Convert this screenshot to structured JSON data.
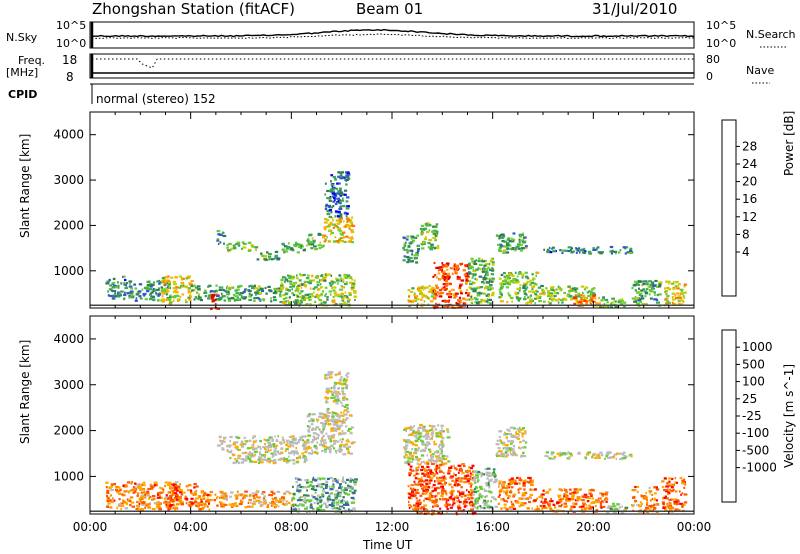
{
  "header": {
    "station": "Zhongshan Station (fitACF)",
    "beam": "Beam 01",
    "date": "31/Jul/2010"
  },
  "status_panels": {
    "nsky_label": "N.Sky",
    "nsky_top_tick": "10^5",
    "nsky_bottom_tick": "10^0",
    "nsearch_label": "N.Search",
    "nsearch_top_tick": "10^5",
    "nsearch_bottom_tick": "10^0",
    "freq_label": "Freq.",
    "freq_unit": "[MHz]",
    "freq_top_tick": "18",
    "freq_bottom_tick": "8",
    "nave_label": "Nave",
    "nave_top_tick": "80",
    "nave_bottom_tick": "0",
    "cpid_label": "CPID",
    "cpid_text": "normal (stereo) 152"
  },
  "chart_data": [
    {
      "type": "heatmap",
      "name": "power",
      "x_tick_labels": [
        "00:00",
        "04:00",
        "08:00",
        "12:00",
        "16:00",
        "20:00",
        "00:00"
      ],
      "xlabel": "",
      "ylabel": "Slant Range [km]",
      "ylim": [
        180,
        4500
      ],
      "y_ticks": [
        1000,
        2000,
        3000,
        4000
      ],
      "colorbar": {
        "label": "Power [dB]",
        "tick_labels": [
          "28",
          "24",
          "20",
          "16",
          "12",
          "8",
          "4"
        ],
        "colors": [
          "#0000ff",
          "#3355cc",
          "#2e7d57",
          "#3ea655",
          "#66cc33",
          "#cccc00",
          "#ffaa00",
          "#ff7700",
          "#ff3300",
          "#dd0000"
        ]
      },
      "regions": [
        {
          "t": [
            0.6,
            1.4
          ],
          "r": [
            400,
            900
          ],
          "level": 0.25
        },
        {
          "t": [
            1.4,
            3.2
          ],
          "r": [
            350,
            800
          ],
          "level": 0.3
        },
        {
          "t": [
            2.8,
            4.0
          ],
          "r": [
            300,
            900
          ],
          "level": 0.55
        },
        {
          "t": [
            4.0,
            5.0
          ],
          "r": [
            350,
            700
          ],
          "level": 0.35
        },
        {
          "t": [
            4.7,
            5.1
          ],
          "r": [
            180,
            500
          ],
          "level": 0.85
        },
        {
          "t": [
            5.0,
            5.3
          ],
          "r": [
            1600,
            1900
          ],
          "level": 0.3
        },
        {
          "t": [
            5.4,
            6.6
          ],
          "r": [
            1450,
            1650
          ],
          "level": 0.45
        },
        {
          "t": [
            6.6,
            7.5
          ],
          "r": [
            1250,
            1450
          ],
          "level": 0.35
        },
        {
          "t": [
            7.6,
            8.6
          ],
          "r": [
            1400,
            1650
          ],
          "level": 0.35
        },
        {
          "t": [
            8.6,
            9.2
          ],
          "r": [
            1500,
            1850
          ],
          "level": 0.4
        },
        {
          "t": [
            9.2,
            10.4
          ],
          "r": [
            1650,
            2200
          ],
          "level": 0.6
        },
        {
          "t": [
            9.3,
            10.2
          ],
          "r": [
            2200,
            3200
          ],
          "level": 0.2
        },
        {
          "t": [
            5.0,
            7.5
          ],
          "r": [
            350,
            700
          ],
          "level": 0.35
        },
        {
          "t": [
            7.5,
            10.5
          ],
          "r": [
            250,
            950
          ],
          "level": 0.45
        },
        {
          "t": [
            12.4,
            13.0
          ],
          "r": [
            1200,
            1800
          ],
          "level": 0.3
        },
        {
          "t": [
            13.1,
            13.8
          ],
          "r": [
            1500,
            2100
          ],
          "level": 0.45
        },
        {
          "t": [
            12.6,
            13.6
          ],
          "r": [
            250,
            700
          ],
          "level": 0.55
        },
        {
          "t": [
            13.6,
            15.0
          ],
          "r": [
            200,
            1200
          ],
          "level": 0.85
        },
        {
          "t": [
            15.0,
            16.0
          ],
          "r": [
            300,
            1300
          ],
          "level": 0.4
        },
        {
          "t": [
            16.1,
            17.3
          ],
          "r": [
            1400,
            1850
          ],
          "level": 0.35
        },
        {
          "t": [
            16.2,
            17.8
          ],
          "r": [
            300,
            1000
          ],
          "level": 0.45
        },
        {
          "t": [
            17.8,
            20.0
          ],
          "r": [
            300,
            700
          ],
          "level": 0.45
        },
        {
          "t": [
            19.2,
            20.2
          ],
          "r": [
            250,
            500
          ],
          "level": 0.75
        },
        {
          "t": [
            18.0,
            21.5
          ],
          "r": [
            1400,
            1550
          ],
          "level": 0.25
        },
        {
          "t": [
            20.2,
            21.2
          ],
          "r": [
            220,
            450
          ],
          "level": 0.45
        },
        {
          "t": [
            21.5,
            22.6
          ],
          "r": [
            250,
            800
          ],
          "level": 0.35
        },
        {
          "t": [
            22.8,
            23.6
          ],
          "r": [
            250,
            800
          ],
          "level": 0.6
        }
      ]
    },
    {
      "type": "heatmap",
      "name": "velocity",
      "x_tick_labels": [
        "00:00",
        "04:00",
        "08:00",
        "12:00",
        "16:00",
        "20:00",
        "00:00"
      ],
      "xlabel": "Time UT",
      "ylabel": "Slant Range [km]",
      "ylim": [
        180,
        4500
      ],
      "y_ticks": [
        1000,
        2000,
        3000,
        4000
      ],
      "colorbar": {
        "label": "Velocity [m s^-1]",
        "tick_labels": [
          "1000",
          "500",
          "100",
          "25",
          "-25",
          "-100",
          "-500",
          "-1000"
        ],
        "colors": [
          "#ff0000",
          "#ff5500",
          "#ff8800",
          "#ffaa00",
          "#bbbbbb",
          "#bbbbbb",
          "#66cc33",
          "#338855",
          "#3366aa",
          "#2244cc"
        ]
      },
      "regions": [
        {
          "t": [
            0.6,
            3.5
          ],
          "r": [
            300,
            900
          ],
          "level": 0.25
        },
        {
          "t": [
            3.0,
            4.2
          ],
          "r": [
            300,
            900
          ],
          "level": 0.2
        },
        {
          "t": [
            4.2,
            5.3
          ],
          "r": [
            300,
            700
          ],
          "level": 0.25
        },
        {
          "t": [
            5.0,
            5.3
          ],
          "r": [
            1600,
            1900
          ],
          "level": 0.5
        },
        {
          "t": [
            5.4,
            8.6
          ],
          "r": [
            1300,
            1900
          ],
          "level": 0.5
        },
        {
          "t": [
            8.6,
            10.4
          ],
          "r": [
            1500,
            2400
          ],
          "level": 0.5
        },
        {
          "t": [
            9.3,
            10.2
          ],
          "r": [
            2400,
            3300
          ],
          "level": 0.5
        },
        {
          "t": [
            5.2,
            8.0
          ],
          "r": [
            350,
            700
          ],
          "level": 0.3
        },
        {
          "t": [
            8.0,
            10.5
          ],
          "r": [
            250,
            1000
          ],
          "level": 0.7
        },
        {
          "t": [
            12.4,
            14.2
          ],
          "r": [
            1300,
            2150
          ],
          "level": 0.5
        },
        {
          "t": [
            12.6,
            15.2
          ],
          "r": [
            200,
            1300
          ],
          "level": 0.15
        },
        {
          "t": [
            15.2,
            16.1
          ],
          "r": [
            300,
            1200
          ],
          "level": 0.6
        },
        {
          "t": [
            16.1,
            17.3
          ],
          "r": [
            1450,
            2100
          ],
          "level": 0.5
        },
        {
          "t": [
            16.2,
            17.6
          ],
          "r": [
            300,
            1000
          ],
          "level": 0.25
        },
        {
          "t": [
            17.6,
            20.5
          ],
          "r": [
            250,
            750
          ],
          "level": 0.2
        },
        {
          "t": [
            18.0,
            21.5
          ],
          "r": [
            1400,
            1550
          ],
          "level": 0.5
        },
        {
          "t": [
            20.5,
            21.3
          ],
          "r": [
            220,
            450
          ],
          "level": 0.55
        },
        {
          "t": [
            21.5,
            22.5
          ],
          "r": [
            250,
            800
          ],
          "level": 0.25
        },
        {
          "t": [
            22.7,
            23.6
          ],
          "r": [
            250,
            1000
          ],
          "level": 0.2
        }
      ]
    }
  ]
}
